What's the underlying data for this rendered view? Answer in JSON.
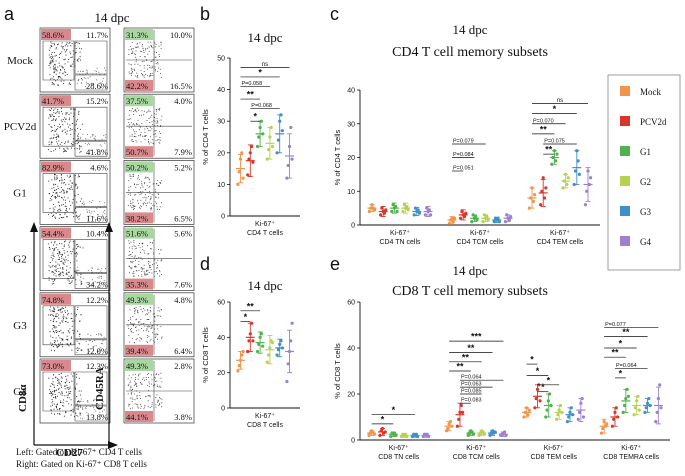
{
  "colors": {
    "Mock": "#f2944a",
    "PCV2d": "#d8362b",
    "G1": "#4fb24d",
    "G2": "#b7d250",
    "G3": "#3f8fc8",
    "G4": "#9e7fd0",
    "pink_quadrant": "#d9898c",
    "green_quadrant": "#a8d8a0"
  },
  "panel_a": {
    "letter": "a",
    "title": "14 dpc",
    "x_axis": "CD27",
    "y_axis_left": "CD8α",
    "y_axis_right": "CD45RA",
    "footnote_left": "Left: Gated on Ki-67⁺ CD4 T cells",
    "footnote_right": "Right: Gated on Ki-67⁺ CD8 T cells",
    "rows": [
      {
        "group": "Mock",
        "cd4": {
          "ul": "58.6%",
          "ur": "11.7%",
          "lr": "28.6%"
        },
        "cd8": {
          "ul": "31.3%",
          "ur": "10.0%",
          "ll": "42.2%",
          "lr": "16.5%"
        }
      },
      {
        "group": "PCV2d",
        "cd4": {
          "ul": "41.7%",
          "ur": "15.2%",
          "lr": "41.8%"
        },
        "cd8": {
          "ul": "37.5%",
          "ur": "4.0%",
          "ll": "50.7%",
          "lr": "7.9%"
        }
      },
      {
        "group": "G1",
        "cd4": {
          "ul": "82.9%",
          "ur": "4.6%",
          "lr": "11.6%"
        },
        "cd8": {
          "ul": "50.2%",
          "ur": "5.2%",
          "ll": "38.2%",
          "lr": "6.5%"
        }
      },
      {
        "group": "G2",
        "cd4": {
          "ul": "54.4%",
          "ur": "10.4%",
          "lr": "34.2%"
        },
        "cd8": {
          "ul": "51.6%",
          "ur": "5.6%",
          "ll": "35.3%",
          "lr": "7.6%"
        }
      },
      {
        "group": "G3",
        "cd4": {
          "ul": "74.8%",
          "ur": "12.2%",
          "lr": "12.0%"
        },
        "cd8": {
          "ul": "49.3%",
          "ur": "4.8%",
          "ll": "39.4%",
          "lr": "6.4%"
        }
      },
      {
        "group": "G4",
        "cd4": {
          "ul": "73.0%",
          "ur": "12.3%",
          "lr": "13.8%"
        },
        "cd8": {
          "ul": "49.3%",
          "ur": "2.8%",
          "ll": "44.1%",
          "lr": "3.8%"
        }
      }
    ]
  },
  "legend": {
    "items": [
      "Mock",
      "PCV2d",
      "G1",
      "G2",
      "G3",
      "G4"
    ]
  },
  "chart_data": [
    {
      "id": "b",
      "type": "scatter",
      "letter": "b",
      "title": "14 dpc",
      "ylabel": "% of CD4 T cells",
      "ylim": [
        0,
        50
      ],
      "yticks": [
        0,
        10,
        20,
        30,
        40,
        50
      ],
      "categories": [
        "Ki-67⁺ CD4 T cells"
      ],
      "category_lines": [
        [
          "Ki-67⁺",
          "CD4 T cells"
        ]
      ],
      "groups": [
        "Mock",
        "PCV2d",
        "G1",
        "G2",
        "G3",
        "G4"
      ],
      "means": [
        [
          15,
          17.5,
          26,
          23,
          26,
          19
        ]
      ],
      "sd": [
        [
          4.5,
          5,
          4,
          5,
          6,
          7
        ]
      ],
      "points": [
        [
          [
            10,
            14,
            18,
            20,
            12
          ],
          [
            13,
            18,
            20,
            22,
            17
          ],
          [
            22,
            25,
            28,
            30,
            26
          ],
          [
            18,
            21,
            25,
            28,
            22
          ],
          [
            20,
            24,
            30,
            32,
            27
          ],
          [
            12,
            16,
            22,
            28,
            18
          ]
        ]
      ],
      "annotations": [
        {
          "text": "ns",
          "from": 0,
          "to": 5,
          "y": 47
        },
        {
          "text": "*",
          "from": 0,
          "to": 4,
          "y": 44
        },
        {
          "text": "P=0.058",
          "from": 0,
          "to": 3,
          "y": 41
        },
        {
          "text": "**",
          "from": 0,
          "to": 2,
          "y": 37
        },
        {
          "text": "P=0.068",
          "from": 1,
          "to": 4,
          "y": 34
        },
        {
          "text": "*",
          "from": 1,
          "to": 2,
          "y": 30
        }
      ]
    },
    {
      "id": "c",
      "type": "scatter",
      "letter": "c",
      "title": "14 dpc",
      "subtitle": "CD4 T cell memory subsets",
      "ylabel": "% of CD4 T cells",
      "ylim": [
        0,
        40
      ],
      "yticks": [
        0,
        10,
        20,
        30,
        40
      ],
      "categories": [
        "Ki-67⁺ CD4 TN cells",
        "Ki-67⁺ CD4 TCM cells",
        "Ki-67⁺ CD4 TEM cells"
      ],
      "category_lines": [
        [
          "Ki-67⁺",
          "CD4 TN cells"
        ],
        [
          "Ki-67⁺",
          "CD4 TCM cells"
        ],
        [
          "Ki-67⁺",
          "CD4 TEM cells"
        ]
      ],
      "groups": [
        "Mock",
        "PCV2d",
        "G1",
        "G2",
        "G3",
        "G4"
      ],
      "means": [
        [
          5,
          4,
          5,
          5,
          4,
          4
        ],
        [
          1.5,
          3,
          2,
          2,
          1.5,
          2
        ],
        [
          8,
          9.5,
          20,
          13,
          17,
          12
        ]
      ],
      "sd": [
        [
          1,
          1.5,
          1.5,
          1.5,
          1.2,
          1.5
        ],
        [
          1,
          1.5,
          1,
          1,
          0.8,
          1
        ],
        [
          3,
          4,
          2,
          2,
          5,
          5
        ]
      ],
      "points": [
        [
          [
            4,
            5,
            6,
            5,
            4.5
          ],
          [
            3,
            5,
            4,
            3.5,
            4.5
          ],
          [
            4,
            6,
            5,
            5.5,
            4
          ],
          [
            4,
            6,
            5,
            5.5,
            4.5
          ],
          [
            3,
            5,
            4,
            4.5,
            3.5
          ],
          [
            3,
            5,
            4,
            4.5,
            3
          ]
        ],
        [
          [
            0.5,
            1.5,
            2,
            1,
            2
          ],
          [
            2,
            4,
            3,
            2.5,
            3.5
          ],
          [
            1,
            3,
            2,
            2.5,
            1.5
          ],
          [
            1,
            3,
            2,
            2.5,
            1.5
          ],
          [
            1,
            2,
            1.5,
            2,
            1
          ],
          [
            1,
            3,
            2,
            1.5,
            2.5
          ]
        ],
        [
          [
            5,
            8,
            11,
            7,
            9
          ],
          [
            6,
            10,
            14,
            8,
            11
          ],
          [
            18,
            20,
            22,
            19,
            21
          ],
          [
            11,
            13,
            15,
            12,
            14
          ],
          [
            12,
            16,
            22,
            19,
            15
          ],
          [
            6,
            10,
            16,
            12,
            14
          ]
        ]
      ],
      "annotations": [
        {
          "text": "P=0.079",
          "cat": 1,
          "from": 0,
          "to": 3,
          "y": 24
        },
        {
          "text": "P=0.084",
          "cat": 1,
          "from": 0,
          "to": 2,
          "y": 20
        },
        {
          "text": "P=0.051",
          "cat": 1,
          "from": 0,
          "to": 1,
          "y": 16
        },
        {
          "text": "ns",
          "cat": 2,
          "from": 0,
          "to": 5,
          "y": 36
        },
        {
          "text": "*",
          "cat": 2,
          "from": 0,
          "to": 4,
          "y": 33
        },
        {
          "text": "P=0.070",
          "cat": 2,
          "from": 0,
          "to": 3,
          "y": 30
        },
        {
          "text": "**",
          "cat": 2,
          "from": 0,
          "to": 2,
          "y": 27
        },
        {
          "text": "P=0.075",
          "cat": 2,
          "from": 1,
          "to": 4,
          "y": 24
        },
        {
          "text": "**",
          "cat": 2,
          "from": 1,
          "to": 2,
          "y": 21
        }
      ]
    },
    {
      "id": "d",
      "type": "scatter",
      "letter": "d",
      "title": "14 dpc",
      "ylabel": "% of CD8 T cells",
      "ylim": [
        0,
        60
      ],
      "yticks": [
        0,
        20,
        40,
        60
      ],
      "categories": [
        "Ki-67⁺ CD8 T cells"
      ],
      "category_lines": [
        [
          "Ki-67⁺",
          "CD8 T cells"
        ]
      ],
      "groups": [
        "Mock",
        "PCV2d",
        "G1",
        "G2",
        "G3",
        "G4"
      ],
      "means": [
        [
          27,
          40,
          37,
          33,
          34,
          32
        ]
      ],
      "sd": [
        [
          5,
          8,
          6,
          8,
          5,
          12
        ]
      ],
      "points": [
        [
          [
            21,
            24,
            27,
            30,
            32
          ],
          [
            32,
            38,
            42,
            48,
            38
          ],
          [
            32,
            36,
            40,
            42,
            35
          ],
          [
            26,
            30,
            34,
            38,
            37
          ],
          [
            30,
            33,
            36,
            38,
            34
          ],
          [
            15,
            25,
            32,
            38,
            48
          ]
        ]
      ],
      "annotations": [
        {
          "text": "**",
          "from": 0,
          "to": 2,
          "y": 55
        },
        {
          "text": "*",
          "from": 0,
          "to": 1,
          "y": 49
        }
      ]
    },
    {
      "id": "e",
      "type": "scatter",
      "letter": "e",
      "title": "14 dpc",
      "subtitle": "CD8 T cell memory subsets",
      "ylabel": "% of CD8 T cells",
      "ylim": [
        0,
        60
      ],
      "yticks": [
        0,
        20,
        40,
        60
      ],
      "categories": [
        "Ki-67⁺ CD8 TN cells",
        "Ki-67⁺ CD8 TCM cells",
        "Ki-67⁺ CD8 TEM cells",
        "Ki-67⁺ CD8 TEMRA cells"
      ],
      "category_lines": [
        [
          "Ki-67⁺",
          "CD8 TN cells"
        ],
        [
          "Ki-67⁺",
          "CD8 TCM cells"
        ],
        [
          "Ki-67⁺",
          "CD8 TEM cells"
        ],
        [
          "Ki-67⁺",
          "CD8 TEMRA cells"
        ]
      ],
      "groups": [
        "Mock",
        "PCV2d",
        "G1",
        "G2",
        "G3",
        "G4"
      ],
      "means": [
        [
          3,
          3.5,
          2.5,
          2,
          2,
          2
        ],
        [
          6,
          11,
          3,
          3,
          3,
          2.5
        ],
        [
          12,
          19,
          15,
          12,
          11,
          13
        ],
        [
          6,
          10,
          17,
          15,
          15,
          15
        ]
      ],
      "sd": [
        [
          1,
          1.5,
          1,
          0.8,
          0.8,
          0.8
        ],
        [
          2,
          5,
          1,
          1,
          1,
          1
        ],
        [
          2,
          5,
          5,
          3,
          3,
          5
        ],
        [
          3,
          4,
          5,
          4,
          3,
          8
        ]
      ],
      "points": [
        [
          [
            2,
            3,
            4,
            3.5,
            2.5
          ],
          [
            2,
            4,
            5,
            3,
            3.5
          ],
          [
            1.5,
            3,
            2.5,
            3,
            2
          ],
          [
            1.5,
            2.5,
            2,
            2.5,
            1.5
          ],
          [
            1.5,
            2.5,
            2,
            2.5,
            1.5
          ],
          [
            1.5,
            2.5,
            2,
            2.5,
            1.5
          ]
        ],
        [
          [
            4,
            5,
            7,
            8,
            6
          ],
          [
            6,
            9,
            12,
            15,
            12
          ],
          [
            2,
            3,
            4,
            3.5,
            2.5
          ],
          [
            2,
            3,
            4,
            3.5,
            2.5
          ],
          [
            2,
            3,
            4,
            3,
            3.5
          ],
          [
            2,
            2.5,
            3,
            3.5,
            2
          ]
        ],
        [
          [
            10,
            12,
            14,
            11,
            13
          ],
          [
            14,
            18,
            22,
            24,
            17
          ],
          [
            10,
            13,
            17,
            20,
            15
          ],
          [
            9,
            11,
            13,
            15,
            12
          ],
          [
            8,
            10,
            12,
            14,
            11
          ],
          [
            9,
            12,
            16,
            18,
            10
          ]
        ],
        [
          [
            3,
            5,
            8,
            6,
            7
          ],
          [
            6,
            9,
            12,
            14,
            10
          ],
          [
            12,
            15,
            18,
            22,
            19
          ],
          [
            11,
            14,
            17,
            19,
            13
          ],
          [
            12,
            14,
            16,
            18,
            15
          ],
          [
            8,
            12,
            18,
            24,
            14
          ]
        ]
      ],
      "annotations": [
        {
          "text": "*",
          "cat": 0,
          "from": 0,
          "to": 4,
          "y": 11
        },
        {
          "text": "*",
          "cat": 0,
          "from": 0,
          "to": 2,
          "y": 7
        },
        {
          "text": "***",
          "cat": 1,
          "from": 0,
          "to": 5,
          "y": 43
        },
        {
          "text": "**",
          "cat": 1,
          "from": 0,
          "to": 4,
          "y": 38
        },
        {
          "text": "**",
          "cat": 1,
          "from": 0,
          "to": 3,
          "y": 34
        },
        {
          "text": "**",
          "cat": 1,
          "from": 0,
          "to": 2,
          "y": 30
        },
        {
          "text": "P=0.064",
          "cat": 1,
          "from": 1,
          "to": 5,
          "y": 26
        },
        {
          "text": "P=0.063",
          "cat": 1,
          "from": 1,
          "to": 4,
          "y": 23
        },
        {
          "text": "P=0.085",
          "cat": 1,
          "from": 1,
          "to": 3,
          "y": 20
        },
        {
          "text": "P=0.083",
          "cat": 1,
          "from": 1,
          "to": 2,
          "y": 16
        },
        {
          "text": "*",
          "cat": 2,
          "from": 0,
          "to": 1,
          "y": 33
        },
        {
          "text": "*",
          "cat": 2,
          "from": 0,
          "to": 2,
          "y": 28
        },
        {
          "text": "*",
          "cat": 2,
          "from": 1,
          "to": 3,
          "y": 24
        },
        {
          "text": "*",
          "cat": 2,
          "from": 1,
          "to": 2,
          "y": 21
        },
        {
          "text": "P=0.077",
          "cat": 3,
          "from": 0,
          "to": 5,
          "y": 49
        },
        {
          "text": "**",
          "cat": 3,
          "from": 0,
          "to": 4,
          "y": 45
        },
        {
          "text": "*",
          "cat": 3,
          "from": 0,
          "to": 3,
          "y": 40
        },
        {
          "text": "**",
          "cat": 3,
          "from": 0,
          "to": 2,
          "y": 36
        },
        {
          "text": "P=0.064",
          "cat": 3,
          "from": 1,
          "to": 4,
          "y": 31
        },
        {
          "text": "*",
          "cat": 3,
          "from": 1,
          "to": 2,
          "y": 27
        }
      ]
    }
  ]
}
